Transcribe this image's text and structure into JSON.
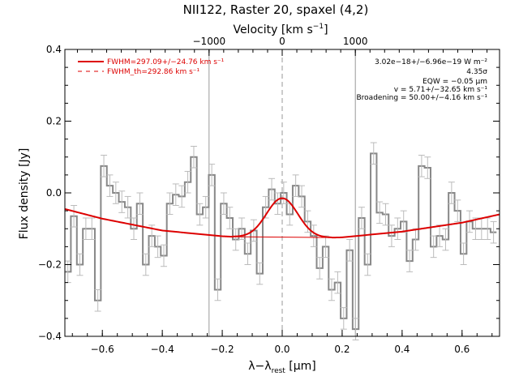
{
  "chart_data": {
    "type": "line",
    "title": "NII122, Raster 20, spaxel (4,2)",
    "xlabel": "λ−λrest [μm]",
    "xlabel_main": "λ−λ",
    "xlabel_sub": "rest",
    "xlabel_unit": " [μm]",
    "ylabel": "Flux density [Jy]",
    "top_xlabel": "Velocity [km s⁻¹]",
    "top_xlabel_main": "Velocity [km s",
    "top_xlabel_sup": "−1",
    "top_xlabel_end": "]",
    "xlim": [
      -0.725,
      0.725
    ],
    "ylim": [
      -0.4,
      0.4
    ],
    "x_ticks": [
      -0.6,
      -0.4,
      -0.2,
      0.0,
      0.2,
      0.4,
      0.6
    ],
    "x_tick_labels": [
      "−0.6",
      "−0.4",
      "−0.2",
      "0.0",
      "0.2",
      "0.4",
      "0.6"
    ],
    "y_ticks": [
      -0.4,
      -0.2,
      0.0,
      0.2,
      0.4
    ],
    "y_tick_labels": [
      "−0.4",
      "−0.2",
      "0.0",
      "0.2",
      "0.4"
    ],
    "top_ticks_um": [
      -0.244,
      0.0,
      0.244
    ],
    "top_tick_labels": [
      "−1000",
      "0",
      "1000"
    ],
    "vertical_lines_um": [
      -0.244,
      0.0,
      0.244
    ],
    "spectrum": {
      "name": "data",
      "color": "#888888",
      "x": [
        -0.715,
        -0.695,
        -0.675,
        -0.655,
        -0.635,
        -0.615,
        -0.595,
        -0.575,
        -0.555,
        -0.535,
        -0.515,
        -0.495,
        -0.475,
        -0.455,
        -0.435,
        -0.415,
        -0.395,
        -0.375,
        -0.355,
        -0.335,
        -0.315,
        -0.295,
        -0.275,
        -0.255,
        -0.235,
        -0.215,
        -0.195,
        -0.175,
        -0.155,
        -0.135,
        -0.115,
        -0.095,
        -0.075,
        -0.055,
        -0.035,
        -0.015,
        0.005,
        0.025,
        0.045,
        0.065,
        0.085,
        0.105,
        0.125,
        0.145,
        0.165,
        0.185,
        0.205,
        0.225,
        0.245,
        0.265,
        0.285,
        0.305,
        0.325,
        0.345,
        0.365,
        0.385,
        0.405,
        0.425,
        0.445,
        0.465,
        0.485,
        0.505,
        0.525,
        0.545,
        0.565,
        0.585,
        0.605,
        0.625,
        0.645,
        0.665,
        0.685,
        0.705
      ],
      "y": [
        -0.22,
        -0.065,
        -0.2,
        -0.1,
        -0.1,
        -0.3,
        0.075,
        0.02,
        0.0,
        -0.025,
        -0.04,
        -0.1,
        -0.03,
        -0.2,
        -0.12,
        -0.15,
        -0.175,
        -0.03,
        -0.005,
        -0.01,
        0.03,
        0.1,
        -0.06,
        -0.04,
        0.05,
        -0.27,
        -0.03,
        -0.07,
        -0.13,
        -0.1,
        -0.17,
        -0.105,
        -0.225,
        -0.04,
        0.01,
        -0.03,
        0.0,
        -0.06,
        0.02,
        -0.01,
        -0.08,
        -0.12,
        -0.21,
        -0.15,
        -0.27,
        -0.25,
        -0.35,
        -0.16,
        -0.38,
        -0.07,
        -0.2,
        0.11,
        -0.055,
        -0.06,
        -0.12,
        -0.1,
        -0.08,
        -0.19,
        -0.13,
        0.075,
        0.07,
        -0.15,
        -0.12,
        -0.13,
        0.0,
        -0.05,
        -0.17,
        -0.08,
        -0.1,
        -0.1,
        -0.1,
        -0.11
      ],
      "error": 0.03
    },
    "continuum_fit": {
      "name": "FWHM=297.09+/−24.76 km s⁻¹",
      "color": "#dd0000",
      "baseline_x": [
        -0.725,
        -0.6,
        -0.4,
        -0.2,
        0.0,
        0.2,
        0.4,
        0.6,
        0.725
      ],
      "baseline_y": [
        -0.045,
        -0.072,
        -0.105,
        -0.121,
        -0.128,
        -0.124,
        -0.108,
        -0.083,
        -0.06
      ],
      "line_center_um": 0.0,
      "line_peak_above_baseline": 0.113,
      "line_sigma_um": 0.052,
      "line_window_um": [
        -0.165,
        0.165
      ]
    },
    "legend": {
      "placement": "top-left",
      "items": [
        {
          "label": "FWHM=297.09+/−24.76 km s⁻¹",
          "style": "solid",
          "color": "#dd0000"
        },
        {
          "label": "FWHM_th=292.86 km s⁻¹",
          "style": "dashed",
          "color": "#dd0000"
        }
      ]
    },
    "annotations": [
      "3.02e−18+/−6.96e−19 W m⁻²",
      "4.35σ",
      "EQW = −0.05 μm",
      "v = 5.71+/−32.65 km s⁻¹",
      "Broadening = 50.00+/−4.16 km s⁻¹"
    ]
  }
}
